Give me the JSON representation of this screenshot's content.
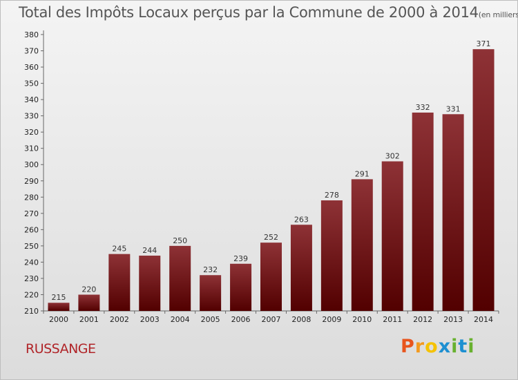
{
  "chart_data": {
    "type": "bar",
    "title": "Total des Impôts Locaux perçus par la Commune de 2000 à 2014",
    "unit_note": "(en milliers d'€)",
    "categories": [
      "2000",
      "2001",
      "2002",
      "2003",
      "2004",
      "2005",
      "2006",
      "2007",
      "2008",
      "2009",
      "2010",
      "2011",
      "2012",
      "2013",
      "2014"
    ],
    "values": [
      215,
      220,
      245,
      244,
      250,
      232,
      239,
      252,
      263,
      278,
      291,
      302,
      332,
      331,
      371
    ],
    "ylim": [
      210,
      380
    ],
    "yticks": [
      210,
      220,
      230,
      240,
      250,
      260,
      270,
      280,
      290,
      300,
      310,
      320,
      330,
      340,
      350,
      360,
      370,
      380
    ],
    "grid": false,
    "xlabel": "",
    "ylabel": "",
    "bar_color": "#7a1a1e"
  },
  "commune_name": "RUSSANGE",
  "brand": {
    "letters": [
      "P",
      "r",
      "o",
      "x",
      "i",
      "t",
      "i"
    ],
    "colors": [
      "#e8541c",
      "#f29a1f",
      "#f5c200",
      "#1d8fd1",
      "#68b12f",
      "#1d8fd1",
      "#68b12f"
    ]
  }
}
